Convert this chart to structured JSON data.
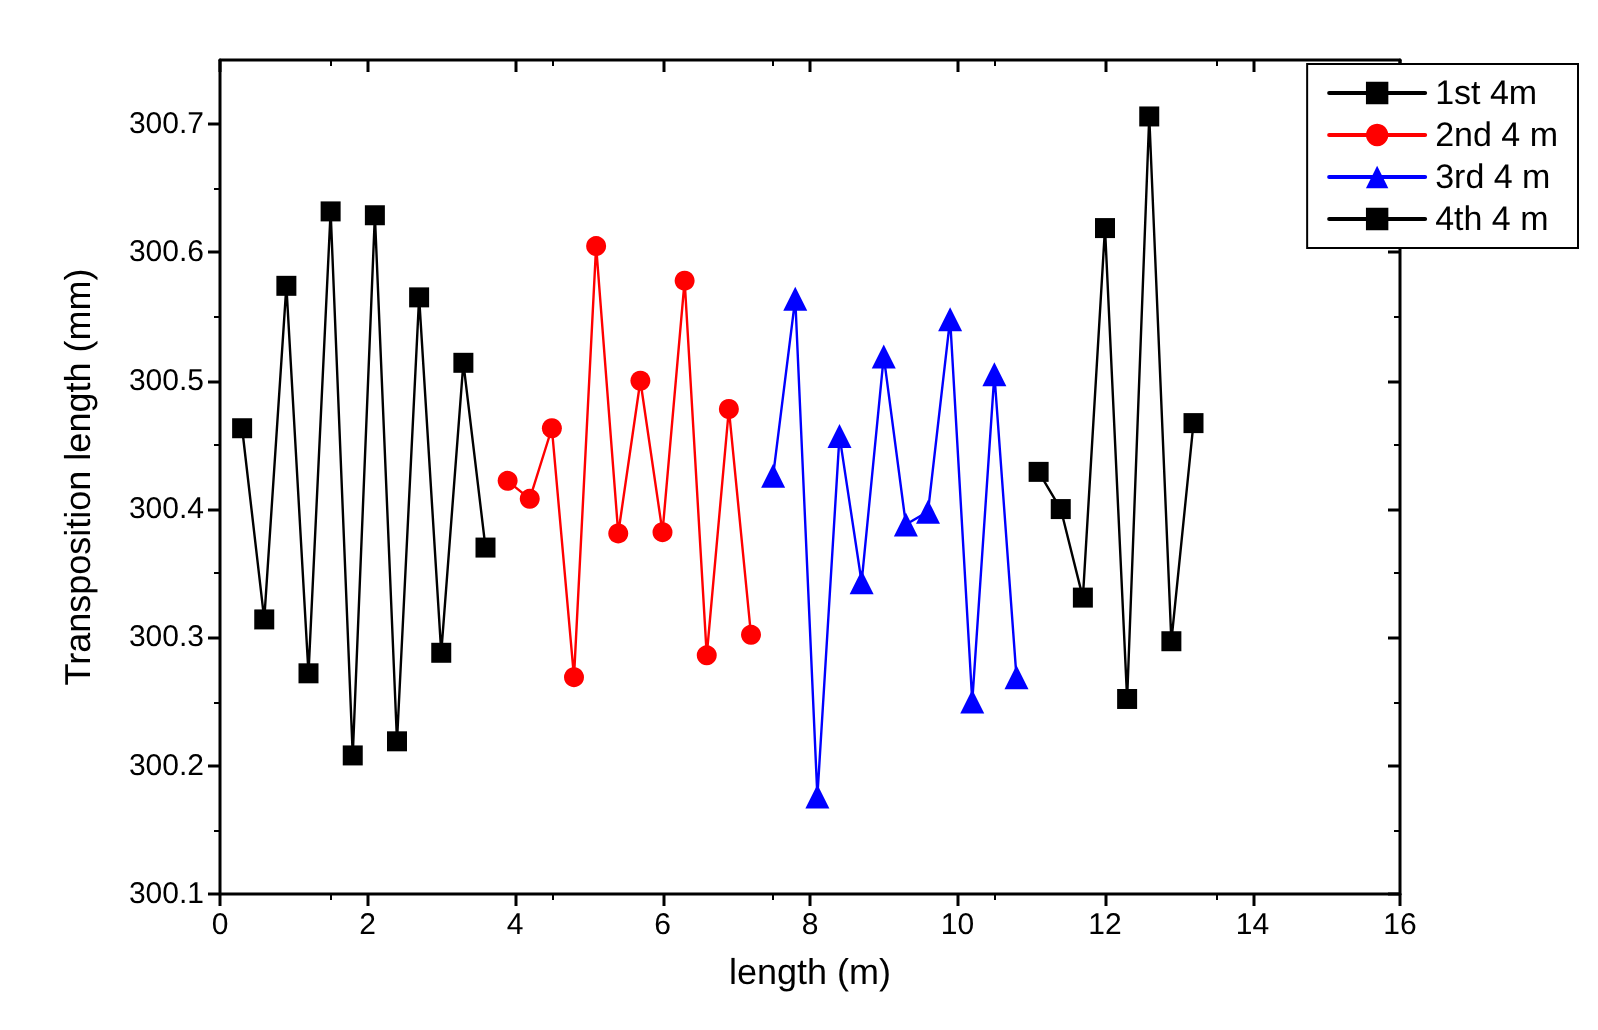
{
  "chart_data": {
    "type": "line",
    "xlabel": "length (m)",
    "ylabel": "Transposition length (mm)",
    "xlim": [
      0,
      16
    ],
    "xticks": [
      0,
      2,
      4,
      6,
      8,
      10,
      12,
      14,
      16
    ],
    "ylim": [
      300.1,
      300.75
    ],
    "yticks": [
      300.1,
      300.2,
      300.3,
      300.4,
      300.5,
      300.6,
      300.7
    ],
    "legend": "top right",
    "grid": false,
    "line_style": "solid",
    "series": [
      {
        "name": "1st 4m",
        "color": "#000000",
        "marker": "square",
        "x": [
          0.3,
          0.6,
          0.9,
          1.2,
          1.5,
          1.8,
          2.1,
          2.4,
          2.7,
          3.0,
          3.3,
          3.6
        ],
        "values": [
          300.463,
          300.314,
          300.574,
          300.272,
          300.632,
          300.208,
          300.629,
          300.219,
          300.565,
          300.288,
          300.514,
          300.37
        ]
      },
      {
        "name": "2nd 4 m",
        "color": "#ff0000",
        "marker": "circle",
        "x": [
          3.9,
          4.2,
          4.5,
          4.8,
          5.1,
          5.4,
          5.7,
          6.0,
          6.3,
          6.6,
          6.9,
          7.2
        ],
        "values": [
          300.422,
          300.408,
          300.463,
          300.269,
          300.605,
          300.381,
          300.5,
          300.382,
          300.578,
          300.286,
          300.478,
          300.302
        ]
      },
      {
        "name": "3rd 4 m",
        "color": "#0000ff",
        "marker": "triangle",
        "x": [
          7.5,
          7.8,
          8.1,
          8.4,
          8.7,
          9.0,
          9.3,
          9.6,
          9.9,
          10.2,
          10.5,
          10.8
        ],
        "values": [
          300.426,
          300.564,
          300.176,
          300.457,
          300.343,
          300.519,
          300.388,
          300.398,
          300.548,
          300.25,
          300.505,
          300.269
        ]
      },
      {
        "name": "4th 4 m",
        "color": "#000000",
        "marker": "square",
        "x": [
          11.1,
          11.4,
          11.7,
          12.0,
          12.3,
          12.6,
          12.9,
          13.2
        ],
        "values": [
          300.429,
          300.4,
          300.331,
          300.619,
          300.252,
          300.706,
          300.297,
          300.467
        ]
      }
    ]
  }
}
